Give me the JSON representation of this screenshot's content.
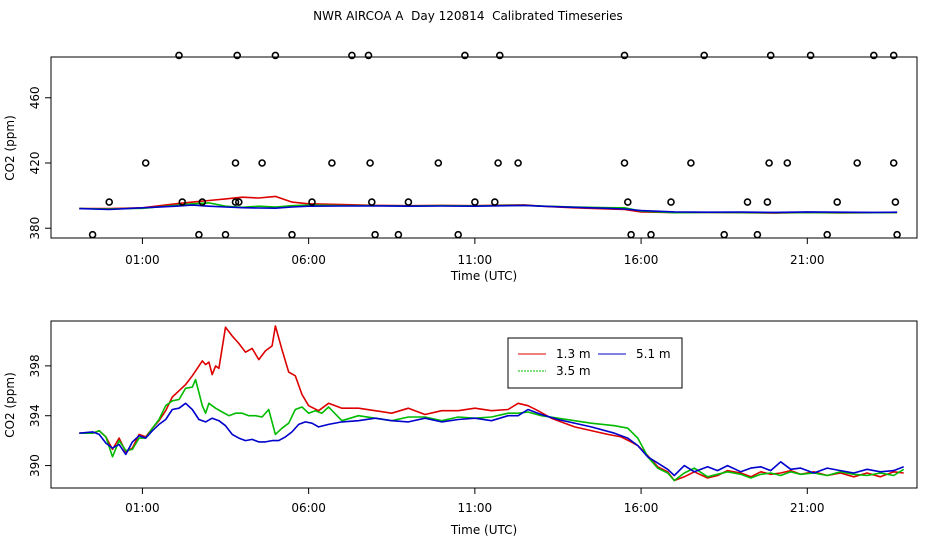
{
  "title": "NWR AIRCOA A  Day 120814  Calibrated Timeseries",
  "chart_data": [
    {
      "type": "line",
      "name": "top",
      "xlabel": "Time (UTC)",
      "ylabel": "CO2 (ppm)",
      "xlim": [
        -1.75,
        24.3
      ],
      "ylim": [
        374,
        485
      ],
      "x_ticks": [
        1,
        6,
        11,
        16,
        21
      ],
      "x_tick_labels": [
        "01:00",
        "06:00",
        "11:00",
        "16:00",
        "21:00"
      ],
      "y_ticks": [
        380,
        420,
        460
      ],
      "y_tick_labels": [
        "380",
        "420",
        "460"
      ],
      "series": [
        {
          "name": "1.3 m",
          "color": "#dd0000",
          "x": [
            -0.9,
            0,
            1,
            2,
            2.5,
            3,
            3.5,
            4,
            4.5,
            5,
            5.5,
            6,
            7,
            8,
            9,
            10,
            11,
            12,
            12.5,
            13,
            14,
            15,
            15.5,
            16,
            17,
            18,
            19,
            20,
            21,
            22,
            23,
            23.7
          ],
          "y": [
            392,
            392,
            392.5,
            395,
            396,
            397,
            398,
            399,
            398.5,
            399.5,
            396,
            395,
            394.5,
            394,
            393.8,
            394,
            393.8,
            394.2,
            394.3,
            393.5,
            392.5,
            391.8,
            391.5,
            390,
            389.6,
            389.7,
            389.5,
            389.3,
            389.6,
            389.4,
            389.5,
            389.6
          ]
        },
        {
          "name": "3.5 m",
          "color": "#00bb00",
          "x": [
            -0.9,
            0,
            1,
            2,
            2.5,
            3,
            3.5,
            4,
            4.5,
            5,
            5.5,
            6,
            7,
            8,
            9,
            10,
            11,
            12,
            12.5,
            13,
            14,
            15,
            15.5,
            16,
            17,
            18,
            19,
            20,
            21,
            22,
            23,
            23.7
          ],
          "y": [
            392,
            391.8,
            392.2,
            394,
            395,
            395.5,
            393.5,
            392.8,
            393.5,
            393,
            393.8,
            394.2,
            393.8,
            393.8,
            393.6,
            393.8,
            393.7,
            394,
            394,
            393.6,
            393,
            392.6,
            392.5,
            390.5,
            389.5,
            389.7,
            389.6,
            389.5,
            389.6,
            389.5,
            389.5,
            389.6
          ]
        },
        {
          "name": "5.1 m",
          "color": "#0000cc",
          "x": [
            -0.9,
            0,
            1,
            2,
            2.5,
            3,
            3.5,
            4,
            4.5,
            5,
            5.5,
            6,
            7,
            8,
            9,
            10,
            11,
            12,
            12.5,
            13,
            14,
            15,
            15.5,
            16,
            17,
            18,
            19,
            20,
            21,
            22,
            23,
            23.7
          ],
          "y": [
            392,
            391.5,
            392.5,
            393.5,
            394.2,
            393.5,
            393,
            392.6,
            392.4,
            392.3,
            393,
            393.5,
            393.6,
            393.7,
            393.5,
            393.6,
            393.5,
            393.8,
            394,
            393.5,
            392.8,
            392.2,
            391.8,
            390.8,
            390,
            389.8,
            389.9,
            389.7,
            390,
            389.8,
            389.7,
            389.8
          ]
        }
      ],
      "points": {
        "marker": "open-circle",
        "color": "#000000",
        "x": [
          -0.5,
          0,
          1.1,
          2.1,
          2.2,
          2.7,
          2.8,
          3.5,
          3.8,
          3.8,
          3.85,
          3.9,
          4.6,
          5.0,
          5.5,
          6.1,
          6.7,
          7.3,
          7.8,
          7.85,
          7.9,
          8.0,
          8.7,
          9.0,
          9.9,
          10.5,
          10.7,
          11.0,
          11.6,
          11.7,
          11.75,
          12.3,
          15.5,
          15.5,
          15.6,
          15.7,
          16.3,
          16.9,
          17.5,
          17.9,
          18.5,
          19.2,
          19.5,
          19.8,
          19.85,
          19.9,
          20.4,
          21.1,
          21.6,
          21.9,
          22.5,
          23.0,
          23.6,
          23.6,
          23.65,
          23.7
        ],
        "y": [
          376,
          396,
          420,
          486,
          396,
          376,
          396,
          376,
          396,
          420,
          486,
          396,
          420,
          486,
          376,
          396,
          420,
          486,
          486,
          420,
          396,
          376,
          376,
          396,
          420,
          376,
          486,
          396,
          396,
          420,
          486,
          420,
          486,
          420,
          396,
          376,
          376,
          396,
          420,
          486,
          376,
          396,
          376,
          396,
          420,
          486,
          420,
          486,
          376,
          396,
          420,
          486,
          486,
          420,
          396,
          376
        ]
      }
    },
    {
      "type": "line",
      "name": "bottom",
      "xlabel": "Time (UTC)",
      "ylabel": "CO2 (ppm)",
      "xlim": [
        -1.75,
        24.3
      ],
      "ylim": [
        388.2,
        401.6
      ],
      "x_ticks": [
        1,
        6,
        11,
        16,
        21
      ],
      "x_tick_labels": [
        "01:00",
        "06:00",
        "11:00",
        "16:00",
        "21:00"
      ],
      "y_ticks": [
        390,
        394,
        398
      ],
      "y_tick_labels": [
        "390",
        "394",
        "398"
      ],
      "legend": {
        "position": "top-center",
        "entries": [
          "1.3 m",
          "5.1 m",
          "3.5 m"
        ]
      },
      "series": [
        {
          "name": "1.3 m",
          "color": "#dd0000",
          "x": [
            -0.9,
            -0.5,
            -0.3,
            -0.1,
            0.1,
            0.3,
            0.5,
            0.7,
            0.9,
            1.1,
            1.3,
            1.5,
            1.7,
            1.9,
            2.1,
            2.3,
            2.5,
            2.6,
            2.8,
            2.9,
            3.0,
            3.1,
            3.2,
            3.3,
            3.5,
            3.7,
            3.9,
            4.1,
            4.3,
            4.5,
            4.7,
            4.9,
            5.0,
            5.2,
            5.4,
            5.6,
            5.8,
            6.0,
            6.3,
            6.6,
            7.0,
            7.5,
            8.0,
            8.5,
            9.0,
            9.5,
            10.0,
            10.5,
            11.0,
            11.5,
            12.0,
            12.3,
            12.6,
            12.9,
            13.3,
            14.0,
            15.0,
            15.4,
            15.7,
            15.9,
            16.2,
            16.5,
            16.8,
            17.0,
            17.3,
            17.6,
            18.0,
            18.3,
            18.6,
            19.0,
            19.3,
            19.6,
            19.9,
            20.2,
            20.5,
            20.8,
            21.2,
            21.6,
            22.0,
            22.4,
            22.8,
            23.2,
            23.6,
            23.9
          ],
          "y": [
            392.6,
            392.6,
            392.8,
            392.3,
            391.3,
            392.2,
            391.1,
            391.4,
            392.5,
            392.3,
            393.0,
            393.6,
            394.4,
            395.5,
            396.0,
            396.5,
            397.2,
            397.6,
            398.4,
            398.1,
            398.3,
            397.3,
            398.0,
            397.8,
            401.1,
            400.4,
            399.8,
            399.1,
            399.4,
            398.5,
            399.2,
            399.6,
            401.2,
            399.3,
            397.5,
            397.2,
            395.7,
            394.8,
            394.4,
            395.0,
            394.6,
            394.6,
            394.4,
            394.2,
            394.6,
            394.1,
            394.4,
            394.4,
            394.6,
            394.4,
            394.5,
            395.0,
            394.8,
            394.4,
            393.8,
            393.1,
            392.5,
            392.3,
            391.9,
            391.6,
            390.8,
            389.9,
            389.5,
            388.8,
            389.1,
            389.5,
            389.0,
            389.2,
            389.6,
            389.4,
            389.1,
            389.5,
            389.3,
            389.4,
            389.6,
            389.3,
            389.5,
            389.2,
            389.4,
            389.1,
            389.4,
            389.1,
            389.5,
            389.4
          ]
        },
        {
          "name": "3.5 m",
          "color": "#00bb00",
          "x": [
            -0.9,
            -0.5,
            -0.3,
            -0.1,
            0.1,
            0.3,
            0.5,
            0.7,
            0.9,
            1.1,
            1.3,
            1.5,
            1.7,
            1.9,
            2.1,
            2.3,
            2.5,
            2.6,
            2.8,
            2.9,
            3.0,
            3.2,
            3.4,
            3.6,
            3.8,
            4.0,
            4.2,
            4.4,
            4.6,
            4.8,
            5.0,
            5.2,
            5.4,
            5.6,
            5.8,
            6.0,
            6.2,
            6.4,
            6.6,
            7.0,
            7.5,
            8.0,
            8.5,
            9.0,
            9.5,
            10.0,
            10.5,
            11.0,
            11.5,
            12.0,
            12.3,
            12.6,
            13.0,
            13.5,
            14.5,
            15.2,
            15.6,
            15.9,
            16.2,
            16.5,
            16.8,
            17.0,
            17.3,
            17.6,
            18.0,
            18.3,
            18.6,
            19.0,
            19.3,
            19.6,
            19.9,
            20.2,
            20.5,
            20.8,
            21.2,
            21.6,
            22.0,
            22.4,
            22.8,
            23.2,
            23.6,
            23.9
          ],
          "y": [
            392.6,
            392.6,
            392.8,
            392.3,
            390.7,
            392.0,
            391.2,
            391.3,
            392.2,
            392.2,
            393.0,
            393.7,
            394.8,
            395.2,
            395.3,
            396.2,
            396.3,
            396.9,
            394.8,
            394.2,
            395.0,
            394.6,
            394.3,
            394.0,
            394.2,
            394.2,
            394.0,
            394.0,
            393.9,
            394.5,
            392.5,
            393.0,
            393.4,
            394.5,
            394.7,
            394.2,
            394.4,
            394.2,
            394.7,
            393.6,
            394.0,
            393.8,
            393.6,
            393.9,
            393.9,
            393.6,
            393.9,
            393.8,
            393.9,
            394.2,
            394.2,
            394.3,
            394.0,
            393.8,
            393.4,
            393.2,
            393.0,
            392.2,
            390.7,
            389.8,
            389.4,
            388.8,
            389.4,
            389.8,
            389.1,
            389.3,
            389.5,
            389.3,
            389.0,
            389.3,
            389.4,
            389.2,
            389.5,
            389.3,
            389.4,
            389.2,
            389.5,
            389.3,
            389.2,
            389.4,
            389.2,
            389.7
          ]
        },
        {
          "name": "5.1 m",
          "color": "#0000cc",
          "x": [
            -0.9,
            -0.5,
            -0.3,
            -0.1,
            0.1,
            0.3,
            0.5,
            0.7,
            0.9,
            1.1,
            1.3,
            1.5,
            1.7,
            1.9,
            2.1,
            2.3,
            2.5,
            2.7,
            2.9,
            3.1,
            3.3,
            3.5,
            3.7,
            3.9,
            4.1,
            4.3,
            4.5,
            4.7,
            4.9,
            5.1,
            5.3,
            5.5,
            5.7,
            5.9,
            6.1,
            6.3,
            6.6,
            7.0,
            7.5,
            8.0,
            8.5,
            9.0,
            9.5,
            10.0,
            10.5,
            11.0,
            11.5,
            12.0,
            12.3,
            12.6,
            13.0,
            13.5,
            14.5,
            15.2,
            15.6,
            15.9,
            16.2,
            16.5,
            16.8,
            17.0,
            17.3,
            17.6,
            18.0,
            18.3,
            18.6,
            19.0,
            19.3,
            19.6,
            19.9,
            20.2,
            20.5,
            20.8,
            21.2,
            21.6,
            22.0,
            22.4,
            22.8,
            23.2,
            23.6,
            23.9
          ],
          "y": [
            392.6,
            392.7,
            392.5,
            391.8,
            391.4,
            391.7,
            390.9,
            391.9,
            392.4,
            392.2,
            392.8,
            393.3,
            393.7,
            394.5,
            394.6,
            395.0,
            394.5,
            393.7,
            393.5,
            393.8,
            393.6,
            393.2,
            392.5,
            392.2,
            392.0,
            392.1,
            391.9,
            391.9,
            392.0,
            392.0,
            392.3,
            392.7,
            393.3,
            393.5,
            393.4,
            393.1,
            393.3,
            393.5,
            393.6,
            393.8,
            393.6,
            393.5,
            393.8,
            393.5,
            393.7,
            393.8,
            393.6,
            394.0,
            394.0,
            394.5,
            394.1,
            393.7,
            393.1,
            392.6,
            392.2,
            391.6,
            390.7,
            390.2,
            389.7,
            389.2,
            390.0,
            389.5,
            389.9,
            389.6,
            390.0,
            389.5,
            389.8,
            389.9,
            389.6,
            390.3,
            389.7,
            389.8,
            389.4,
            389.8,
            389.6,
            389.4,
            389.7,
            389.5,
            389.6,
            389.9
          ]
        }
      ]
    }
  ]
}
